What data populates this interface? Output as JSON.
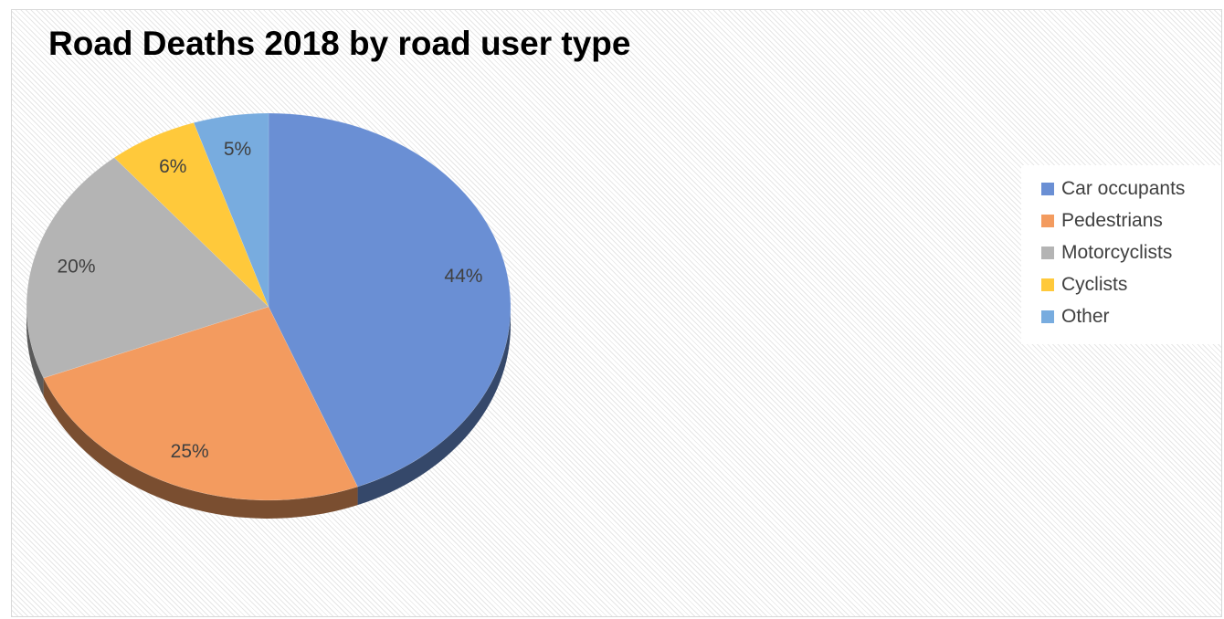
{
  "chart_data": {
    "type": "pie",
    "title": "Road Deaths 2018 by road user type",
    "legend_position": "right",
    "series": [
      {
        "name": "Car occupants",
        "value": 44,
        "label": "44%",
        "color": "#6a8fd4"
      },
      {
        "name": "Pedestrians",
        "value": 25,
        "label": "25%",
        "color": "#f39b5f"
      },
      {
        "name": "Motorcyclists",
        "value": 20,
        "label": "20%",
        "color": "#b4b4b4"
      },
      {
        "name": "Cyclists",
        "value": 6,
        "label": "6%",
        "color": "#ffc93b"
      },
      {
        "name": "Other",
        "value": 5,
        "label": "5%",
        "color": "#78acdf"
      }
    ]
  }
}
